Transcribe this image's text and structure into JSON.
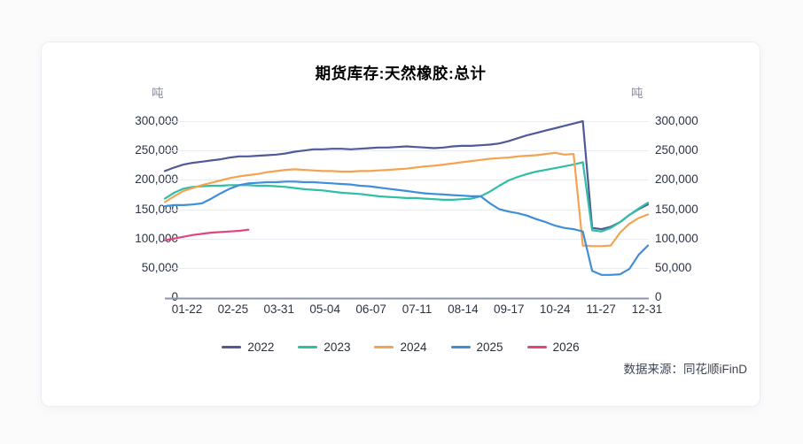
{
  "card": {
    "title": "期货库存:天然橡胶:总计",
    "unit_left": "吨",
    "unit_right": "吨",
    "source": "数据来源：同花顺iFinD"
  },
  "chart_data": {
    "type": "line",
    "title": "期货库存:天然橡胶:总计",
    "unit": "吨",
    "grid": "horizontal-only",
    "legend_position": "bottom-center",
    "ylim": [
      0,
      300000
    ],
    "y_ticks": [
      0,
      50000,
      100000,
      150000,
      200000,
      250000,
      300000
    ],
    "x_tick_labels": [
      "01-22",
      "02-25",
      "03-31",
      "05-04",
      "06-07",
      "07-11",
      "08-14",
      "09-17",
      "10-24",
      "11-27",
      "12-31"
    ],
    "x_note": "weekly data, 53 points per full year",
    "axis_line_color": "#8b95a9",
    "gridline_color": "#e9ebf3",
    "series": [
      {
        "name": "2022",
        "color": "#4f5a96",
        "values": [
          215000,
          221000,
          226000,
          229000,
          231000,
          233000,
          235000,
          238000,
          240000,
          240000,
          241000,
          242000,
          243000,
          245000,
          248000,
          250000,
          252000,
          252000,
          253000,
          253000,
          252000,
          253000,
          254000,
          255000,
          255000,
          256000,
          257000,
          256000,
          255000,
          254000,
          255000,
          257000,
          258000,
          258000,
          259000,
          260000,
          262000,
          266000,
          271000,
          276000,
          280000,
          284000,
          288000,
          292000,
          296000,
          300000,
          118000,
          116000,
          120000,
          128000,
          140000,
          150000,
          158000
        ]
      },
      {
        "name": "2023",
        "color": "#2ebfa5",
        "values": [
          168000,
          178000,
          185000,
          188000,
          189000,
          190000,
          190000,
          191000,
          191000,
          191000,
          190000,
          190000,
          189000,
          188000,
          186000,
          184000,
          183000,
          182000,
          180000,
          178000,
          177000,
          176000,
          174000,
          172000,
          171000,
          170000,
          169000,
          169000,
          168000,
          167000,
          166000,
          166000,
          167000,
          168000,
          172000,
          180000,
          190000,
          199000,
          205000,
          210000,
          214000,
          217000,
          220000,
          223000,
          226000,
          230000,
          114000,
          112000,
          118000,
          128000,
          140000,
          151000,
          161000
        ]
      },
      {
        "name": "2024",
        "color": "#f3a351",
        "values": [
          162000,
          172000,
          181000,
          186000,
          191000,
          195000,
          199000,
          203000,
          206000,
          208000,
          210000,
          213000,
          215000,
          217000,
          218000,
          217000,
          216000,
          215000,
          215000,
          214000,
          214000,
          215000,
          215000,
          216000,
          217000,
          218000,
          219000,
          221000,
          223000,
          224000,
          226000,
          228000,
          230000,
          232000,
          234000,
          236000,
          237000,
          238000,
          240000,
          241000,
          242000,
          244000,
          246000,
          243000,
          244000,
          88000,
          87000,
          87000,
          88000,
          110000,
          125000,
          135000,
          141000
        ]
      },
      {
        "name": "2025",
        "color": "#3e8fd8",
        "values": [
          155000,
          157000,
          157000,
          158000,
          160000,
          168000,
          177000,
          185000,
          191000,
          194000,
          195000,
          196000,
          196000,
          197000,
          197000,
          196000,
          196000,
          195000,
          194000,
          193000,
          192000,
          190000,
          189000,
          187000,
          185000,
          183000,
          181000,
          179000,
          177000,
          176000,
          175000,
          174000,
          173000,
          172000,
          172000,
          160000,
          150000,
          146000,
          143000,
          139000,
          133000,
          128000,
          122000,
          118000,
          116000,
          112000,
          45000,
          38000,
          38000,
          39000,
          48000,
          72000,
          88000
        ]
      },
      {
        "name": "2026",
        "color": "#e2447f",
        "values": [
          97000,
          100000,
          103000,
          106000,
          108000,
          110000,
          111000,
          112000,
          113000,
          115000
        ]
      }
    ]
  }
}
